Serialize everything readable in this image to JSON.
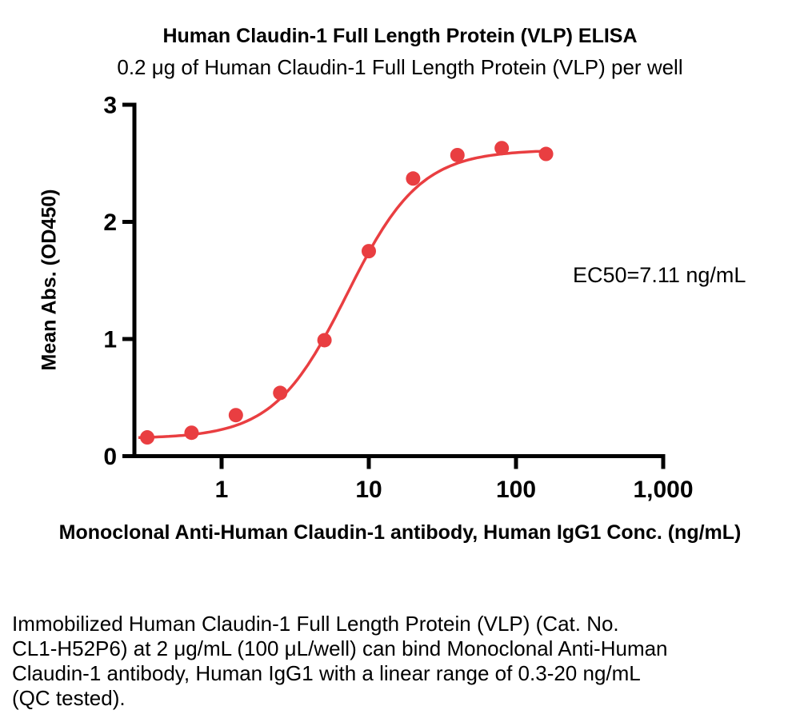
{
  "header": {
    "title": "Human Claudin-1 Full Length Protein (VLP) ELISA",
    "subtitle": "0.2 μg of Human Claudin-1 Full Length Protein (VLP) per well"
  },
  "chart_data": {
    "type": "scatter",
    "title": "Human Claudin-1 Full Length Protein (VLP) ELISA",
    "subtitle": "0.2 μg of Human Claudin-1 Full Length Protein (VLP) per well",
    "xlabel": "Monoclonal Anti-Human Claudin-1 antibody, Human IgG1 Conc. (ng/mL)",
    "ylabel": "Mean Abs. (OD450)",
    "xscale": "log",
    "xlim": [
      0.26,
      1000
    ],
    "ylim": [
      0,
      3
    ],
    "xticks": [
      1,
      10,
      100,
      1000
    ],
    "xtick_labels": [
      "1",
      "10",
      "100",
      "1,000"
    ],
    "yticks": [
      0,
      1,
      2,
      3
    ],
    "grid": false,
    "legend": false,
    "x": [
      0.3125,
      0.625,
      1.25,
      2.5,
      5,
      10,
      20,
      40,
      80,
      160
    ],
    "y": [
      0.16,
      0.2,
      0.35,
      0.54,
      0.99,
      1.75,
      2.37,
      2.57,
      2.63,
      2.58
    ],
    "fit": {
      "model": "4PL sigmoid",
      "bottom": 0.15,
      "top": 2.615,
      "ec50": 7.11,
      "hill": 1.75,
      "draw_range": [
        0.272,
        160
      ]
    },
    "annotation": "EC50=7.11 ng/mL",
    "marker_color": "#e93e41",
    "line_color": "#e93e41",
    "axis_color": "#000000"
  },
  "footer": {
    "lines": [
      "Immobilized Human Claudin-1 Full Length Protein (VLP) (Cat. No.",
      "CL1-H52P6) at 2 μg/mL (100 μL/well) can bind Monoclonal Anti-Human",
      "Claudin-1 antibody, Human IgG1 with a linear range of 0.3-20 ng/mL",
      "(QC tested)."
    ]
  }
}
